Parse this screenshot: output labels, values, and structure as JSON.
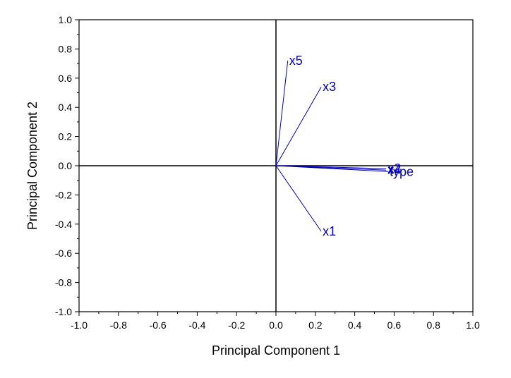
{
  "chart_data": {
    "type": "biplot",
    "xlabel": "Principal Component 1",
    "ylabel": "Principal Component 2",
    "xlim": [
      -1.0,
      1.0
    ],
    "ylim": [
      -1.0,
      1.0
    ],
    "xticks": [
      "-1.0",
      "-0.8",
      "-0.6",
      "-0.4",
      "-0.2",
      "0.0",
      "0.2",
      "0.4",
      "0.6",
      "0.8",
      "1.0"
    ],
    "yticks": [
      "-1.0",
      "-0.8",
      "-0.6",
      "-0.4",
      "-0.2",
      "0.0",
      "0.2",
      "0.4",
      "0.6",
      "0.8",
      "1.0"
    ],
    "grid": false,
    "vector_color": "#0000cc",
    "vectors": [
      {
        "label": "x5",
        "x": 0.06,
        "y": 0.72
      },
      {
        "label": "x3",
        "x": 0.23,
        "y": 0.54
      },
      {
        "label": "x1",
        "x": 0.23,
        "y": -0.45
      },
      {
        "label": "x2",
        "x": 0.56,
        "y": -0.02
      },
      {
        "label": "x4",
        "x": 0.56,
        "y": -0.03
      },
      {
        "label": "type",
        "x": 0.57,
        "y": -0.04
      }
    ]
  }
}
